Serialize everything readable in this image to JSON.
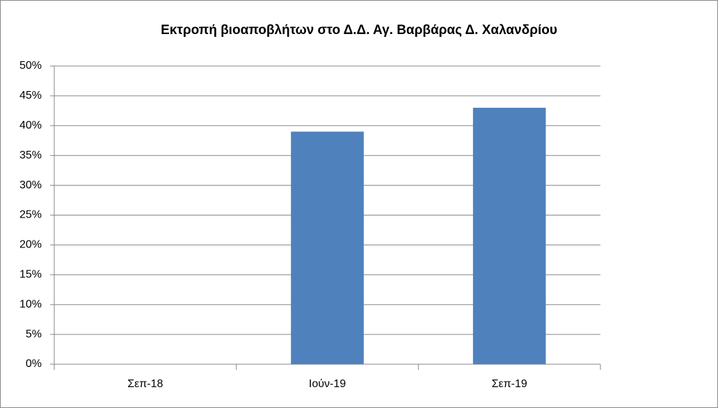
{
  "chart_data": {
    "type": "bar",
    "title": "Εκτροπή βιοαποβλήτων στο Δ.Δ. Αγ. Βαρβάρας Δ. Χαλανδρίου",
    "categories": [
      "Σεπ-18",
      "Ιούν-19",
      "Σεπ-19"
    ],
    "values": [
      null,
      39,
      43
    ],
    "color": "#4f81bd",
    "ylim": [
      0,
      50
    ],
    "yticks": [
      {
        "value": 0,
        "label": "0%"
      },
      {
        "value": 5,
        "label": "5%"
      },
      {
        "value": 10,
        "label": "10%"
      },
      {
        "value": 15,
        "label": "15%"
      },
      {
        "value": 20,
        "label": "20%"
      },
      {
        "value": 25,
        "label": "25%"
      },
      {
        "value": 30,
        "label": "30%"
      },
      {
        "value": 35,
        "label": "35%"
      },
      {
        "value": 40,
        "label": "40%"
      },
      {
        "value": 45,
        "label": "45%"
      },
      {
        "value": 50,
        "label": "50%"
      }
    ],
    "grid": true
  }
}
